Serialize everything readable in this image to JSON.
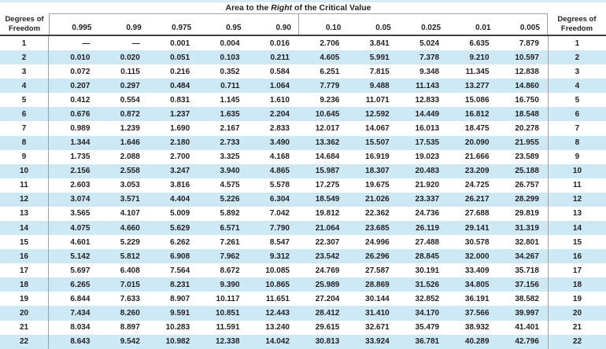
{
  "title": {
    "prefix": "Area to the ",
    "emphasis": "Right",
    "suffix": " of the Critical Value"
  },
  "df_header": {
    "line1": "Degrees of",
    "line2": "Freedom"
  },
  "columns": [
    "0.995",
    "0.99",
    "0.975",
    "0.95",
    "0.90",
    "0.10",
    "0.05",
    "0.025",
    "0.01",
    "0.005"
  ],
  "rows": [
    {
      "df": "1",
      "values": [
        "—",
        "—",
        "0.001",
        "0.004",
        "0.016",
        "2.706",
        "3.841",
        "5.024",
        "6.635",
        "7.879"
      ]
    },
    {
      "df": "2",
      "values": [
        "0.010",
        "0.020",
        "0.051",
        "0.103",
        "0.211",
        "4.605",
        "5.991",
        "7.378",
        "9.210",
        "10.597"
      ]
    },
    {
      "df": "3",
      "values": [
        "0.072",
        "0.115",
        "0.216",
        "0.352",
        "0.584",
        "6.251",
        "7.815",
        "9.348",
        "11.345",
        "12.838"
      ]
    },
    {
      "df": "4",
      "values": [
        "0.207",
        "0.297",
        "0.484",
        "0.711",
        "1.064",
        "7.779",
        "9.488",
        "11.143",
        "13.277",
        "14.860"
      ]
    },
    {
      "df": "5",
      "values": [
        "0.412",
        "0.554",
        "0.831",
        "1.145",
        "1.610",
        "9.236",
        "11.071",
        "12.833",
        "15.086",
        "16.750"
      ]
    },
    {
      "df": "6",
      "values": [
        "0.676",
        "0.872",
        "1.237",
        "1.635",
        "2.204",
        "10.645",
        "12.592",
        "14.449",
        "16.812",
        "18.548"
      ]
    },
    {
      "df": "7",
      "values": [
        "0.989",
        "1.239",
        "1.690",
        "2.167",
        "2.833",
        "12.017",
        "14.067",
        "16.013",
        "18.475",
        "20.278"
      ]
    },
    {
      "df": "8",
      "values": [
        "1.344",
        "1.646",
        "2.180",
        "2.733",
        "3.490",
        "13.362",
        "15.507",
        "17.535",
        "20.090",
        "21.955"
      ]
    },
    {
      "df": "9",
      "values": [
        "1.735",
        "2.088",
        "2.700",
        "3.325",
        "4.168",
        "14.684",
        "16.919",
        "19.023",
        "21.666",
        "23.589"
      ]
    },
    {
      "df": "10",
      "values": [
        "2.156",
        "2.558",
        "3.247",
        "3.940",
        "4.865",
        "15.987",
        "18.307",
        "20.483",
        "23.209",
        "25.188"
      ]
    },
    {
      "df": "11",
      "values": [
        "2.603",
        "3.053",
        "3.816",
        "4.575",
        "5.578",
        "17.275",
        "19.675",
        "21.920",
        "24.725",
        "26.757"
      ]
    },
    {
      "df": "12",
      "values": [
        "3.074",
        "3.571",
        "4.404",
        "5.226",
        "6.304",
        "18.549",
        "21.026",
        "23.337",
        "26.217",
        "28.299"
      ]
    },
    {
      "df": "13",
      "values": [
        "3.565",
        "4.107",
        "5.009",
        "5.892",
        "7.042",
        "19.812",
        "22.362",
        "24.736",
        "27.688",
        "29.819"
      ]
    },
    {
      "df": "14",
      "values": [
        "4.075",
        "4.660",
        "5.629",
        "6.571",
        "7.790",
        "21.064",
        "23.685",
        "26.119",
        "29.141",
        "31.319"
      ]
    },
    {
      "df": "15",
      "values": [
        "4.601",
        "5.229",
        "6.262",
        "7.261",
        "8.547",
        "22.307",
        "24.996",
        "27.488",
        "30.578",
        "32.801"
      ]
    },
    {
      "df": "16",
      "values": [
        "5.142",
        "5.812",
        "6.908",
        "7.962",
        "9.312",
        "23.542",
        "26.296",
        "28.845",
        "32.000",
        "34.267"
      ]
    },
    {
      "df": "17",
      "values": [
        "5.697",
        "6.408",
        "7.564",
        "8.672",
        "10.085",
        "24.769",
        "27.587",
        "30.191",
        "33.409",
        "35.718"
      ]
    },
    {
      "df": "18",
      "values": [
        "6.265",
        "7.015",
        "8.231",
        "9.390",
        "10.865",
        "25.989",
        "28.869",
        "31.526",
        "34.805",
        "37.156"
      ]
    },
    {
      "df": "19",
      "values": [
        "6.844",
        "7.633",
        "8.907",
        "10.117",
        "11.651",
        "27.204",
        "30.144",
        "32.852",
        "36.191",
        "38.582"
      ]
    },
    {
      "df": "20",
      "values": [
        "7.434",
        "8.260",
        "9.591",
        "10.851",
        "12.443",
        "28.412",
        "31.410",
        "34.170",
        "37.566",
        "39.997"
      ]
    },
    {
      "df": "21",
      "values": [
        "8.034",
        "8.897",
        "10.283",
        "11.591",
        "13.240",
        "29.615",
        "32.671",
        "35.479",
        "38.932",
        "41.401"
      ]
    },
    {
      "df": "22",
      "values": [
        "8.643",
        "9.542",
        "10.982",
        "12.338",
        "14.042",
        "30.813",
        "33.924",
        "36.781",
        "40.289",
        "42.796"
      ]
    }
  ],
  "colors": {
    "stripe": "#cde9f6",
    "topbar": "#d6ecf8",
    "border": "#9d9fa2",
    "rule": "#404042",
    "text": "#231f20"
  }
}
